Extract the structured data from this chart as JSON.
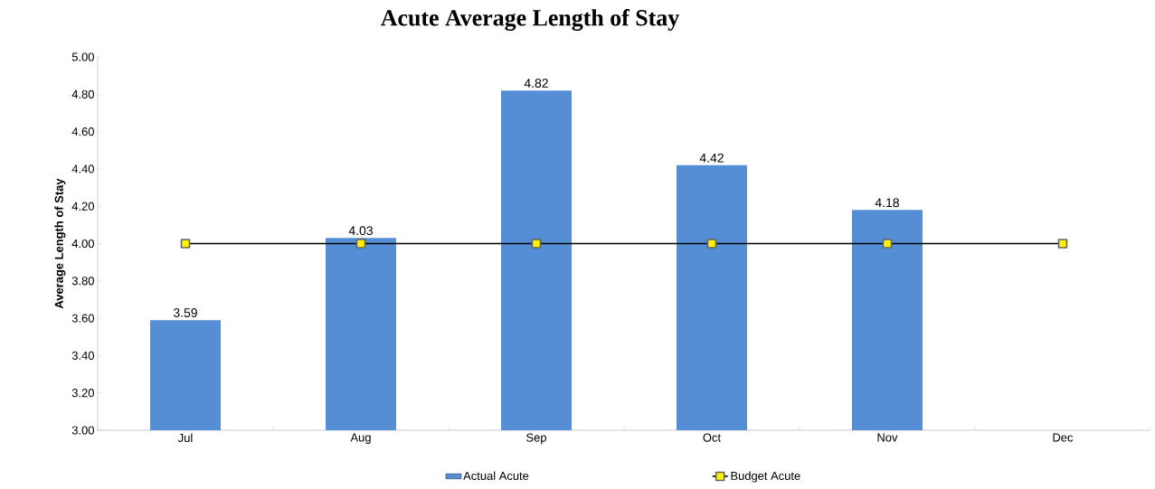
{
  "chart_data": {
    "type": "bar",
    "title": "Acute Average Length of Stay",
    "ylabel": "Average Length of Stay",
    "categories": [
      "Jul",
      "Aug",
      "Sep",
      "Oct",
      "Nov",
      "Dec"
    ],
    "series": [
      {
        "name": "Actual Acute",
        "color": "#558ed5",
        "values": [
          3.59,
          4.03,
          4.82,
          4.42,
          4.18,
          null
        ],
        "value_labels": [
          "3.59",
          "4.03",
          "4.82",
          "4.42",
          "4.18",
          null
        ]
      },
      {
        "name": "Budget Acute",
        "type": "line",
        "color": "#000000",
        "marker": "square",
        "values": [
          4.0,
          4.0,
          4.0,
          4.0,
          4.0,
          4.0
        ]
      }
    ],
    "ylim": [
      3.0,
      5.0
    ],
    "yticks": [
      {
        "value": 3.0,
        "label": "3.00"
      },
      {
        "value": 3.2,
        "label": "3.20"
      },
      {
        "value": 3.4,
        "label": "3.40"
      },
      {
        "value": 3.6,
        "label": "3.60"
      },
      {
        "value": 3.8,
        "label": "3.80"
      },
      {
        "value": 4.0,
        "label": "4.00"
      },
      {
        "value": 4.2,
        "label": "4.20"
      },
      {
        "value": 4.4,
        "label": "4.40"
      },
      {
        "value": 4.6,
        "label": "4.60"
      },
      {
        "value": 4.8,
        "label": "4.80"
      },
      {
        "value": 5.0,
        "label": "5.00"
      }
    ],
    "grid": false,
    "legend": "bottom"
  }
}
